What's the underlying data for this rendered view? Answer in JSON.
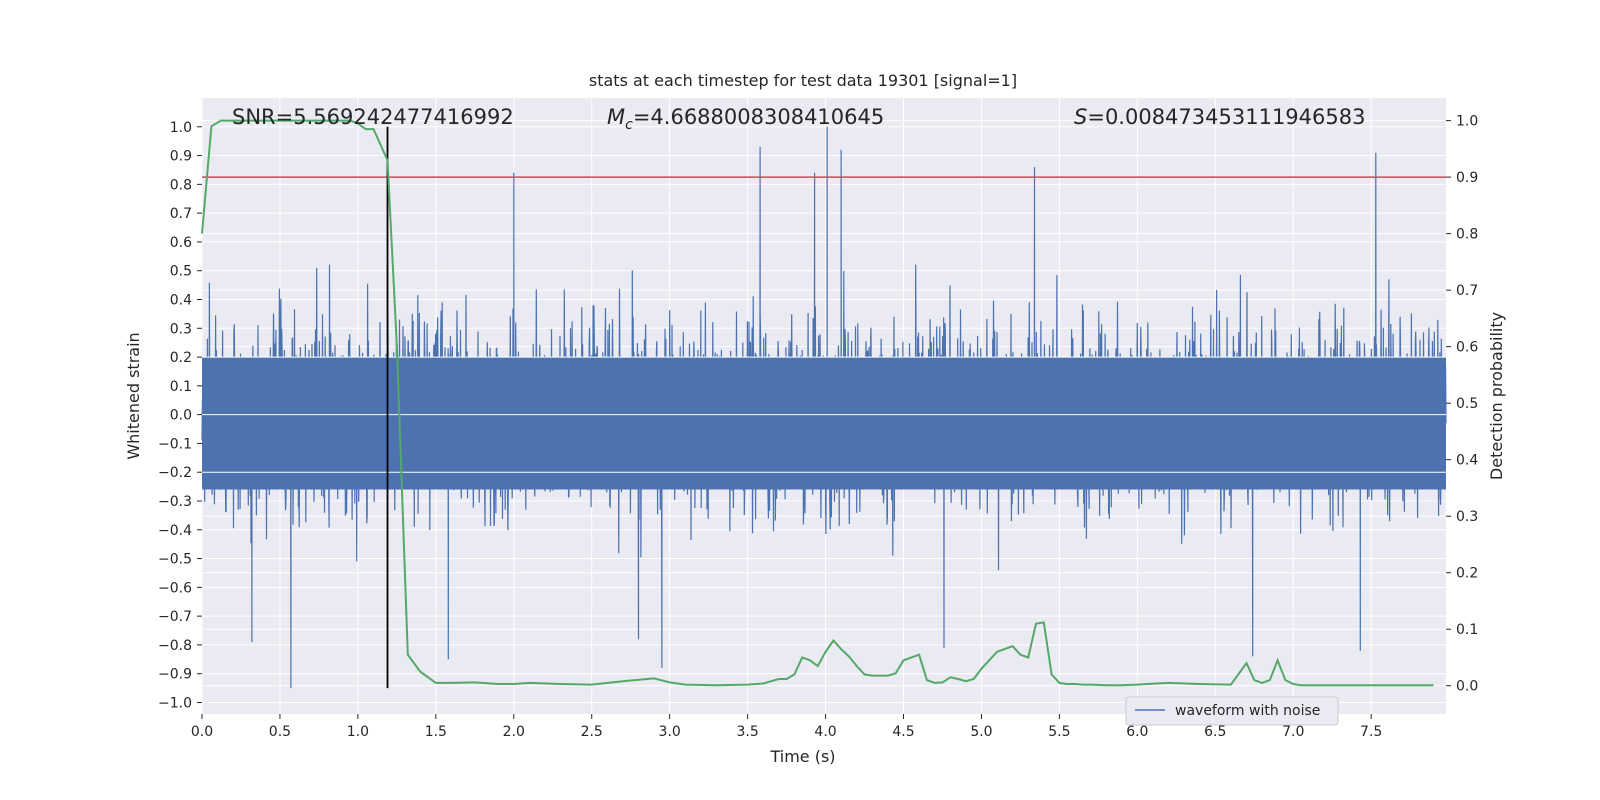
{
  "chart_data": {
    "type": "line",
    "title": "stats at each timestep for test data 19301 [signal=1]",
    "xlabel": "Time (s)",
    "ylabel_left": "Whitened strain",
    "ylabel_right": "Detection probability",
    "xlim": [
      0.0,
      7.98
    ],
    "ylim_left": [
      -1.04,
      1.1
    ],
    "ylim_right": [
      -0.05,
      1.04
    ],
    "x_ticks": [
      0.0,
      0.5,
      1.0,
      1.5,
      2.0,
      2.5,
      3.0,
      3.5,
      4.0,
      4.5,
      5.0,
      5.5,
      6.0,
      6.5,
      7.0,
      7.5
    ],
    "x_tick_labels": [
      "0.0",
      "0.5",
      "1.0",
      "1.5",
      "2.0",
      "2.5",
      "3.0",
      "3.5",
      "4.0",
      "4.5",
      "5.0",
      "5.5",
      "6.0",
      "6.5",
      "7.0",
      "7.5"
    ],
    "y_left_ticks": [
      1.0,
      0.9,
      0.8,
      0.7,
      0.6,
      0.5,
      0.4,
      0.3,
      0.2,
      0.1,
      0.0,
      -0.1,
      -0.2,
      -0.3,
      -0.4,
      -0.5,
      -0.6,
      -0.7,
      -0.8,
      -0.9,
      -1.0
    ],
    "y_left_tick_labels": [
      "1.0",
      "0.9",
      "0.8",
      "0.7",
      "0.6",
      "0.5",
      "0.4",
      "0.3",
      "0.2",
      "0.1",
      "0.0",
      "−0.1",
      "−0.2",
      "−0.3",
      "−0.4",
      "−0.5",
      "−0.6",
      "−0.7",
      "−0.8",
      "−0.9",
      "−1.0"
    ],
    "y_right_ticks": [
      1.0,
      0.9,
      0.8,
      0.7,
      0.6,
      0.5,
      0.4,
      0.3,
      0.2,
      0.1,
      0.0
    ],
    "y_right_tick_labels": [
      "1.0",
      "0.9",
      "0.8",
      "0.7",
      "0.6",
      "0.5",
      "0.4",
      "0.3",
      "0.2",
      "0.1",
      "0.0"
    ],
    "annotations": {
      "snr": "SNR=5.569242477416992",
      "mc_symbol": "M",
      "mc_sub": "c",
      "mc_value": "=4.6688008308410645",
      "s_symbol": "S",
      "s_value": "=0.008473453111946583"
    },
    "threshold_probability": 0.9,
    "event_time": 1.19,
    "event_line_ylim": [
      -0.95,
      1.0
    ],
    "legend": {
      "label": "waveform with noise",
      "placement": "lower-right"
    },
    "grid": true,
    "colors": {
      "strain": "#4c72b0",
      "probability": "#55a868",
      "threshold": "#c44e52",
      "event_line": "#000000",
      "background": "#eaeaf2",
      "grid": "#ffffff"
    },
    "series": [
      {
        "name": "waveform with noise",
        "axis": "left",
        "kind": "dense_noise",
        "sample_rate": 1024,
        "typical_envelope": [
          -0.45,
          0.5
        ],
        "peaks": [
          {
            "x": 0.57,
            "y": -0.95
          },
          {
            "x": 0.32,
            "y": -0.79
          },
          {
            "x": 1.58,
            "y": -0.85
          },
          {
            "x": 2.0,
            "y": 0.84
          },
          {
            "x": 2.95,
            "y": -0.88
          },
          {
            "x": 3.58,
            "y": 0.93
          },
          {
            "x": 4.01,
            "y": 1.0
          },
          {
            "x": 4.1,
            "y": 0.92
          },
          {
            "x": 3.93,
            "y": 0.84
          },
          {
            "x": 4.76,
            "y": -0.81
          },
          {
            "x": 5.34,
            "y": 0.86
          },
          {
            "x": 6.74,
            "y": -0.84
          },
          {
            "x": 7.53,
            "y": 0.91
          },
          {
            "x": 7.43,
            "y": -0.82
          },
          {
            "x": 2.8,
            "y": -0.78
          }
        ]
      },
      {
        "name": "",
        "axis": "right",
        "kind": "line",
        "x": [
          0.0,
          0.06,
          0.12,
          0.2,
          0.3,
          0.45,
          0.6,
          0.8,
          0.95,
          1.0,
          1.05,
          1.1,
          1.19,
          1.25,
          1.32,
          1.4,
          1.5,
          1.6,
          1.75,
          1.9,
          2.0,
          2.1,
          2.3,
          2.5,
          2.7,
          2.9,
          3.0,
          3.1,
          3.3,
          3.5,
          3.6,
          3.7,
          3.75,
          3.8,
          3.85,
          3.9,
          3.95,
          4.0,
          4.05,
          4.1,
          4.15,
          4.2,
          4.25,
          4.3,
          4.4,
          4.45,
          4.5,
          4.6,
          4.65,
          4.7,
          4.75,
          4.8,
          4.85,
          4.9,
          4.95,
          5.0,
          5.1,
          5.2,
          5.25,
          5.3,
          5.35,
          5.4,
          5.45,
          5.5,
          5.55,
          5.6,
          5.65,
          5.7,
          5.8,
          5.9,
          6.0,
          6.2,
          6.4,
          6.6,
          6.7,
          6.75,
          6.8,
          6.85,
          6.9,
          6.95,
          7.0,
          7.05,
          7.1,
          7.3,
          7.5,
          7.7,
          7.9
        ],
        "y": [
          0.8,
          0.99,
          1.0,
          1.0,
          1.0,
          1.0,
          1.0,
          1.0,
          1.0,
          0.995,
          0.985,
          0.985,
          0.93,
          0.6,
          0.055,
          0.025,
          0.005,
          0.005,
          0.006,
          0.003,
          0.003,
          0.005,
          0.003,
          0.002,
          0.008,
          0.013,
          0.006,
          0.002,
          0.001,
          0.002,
          0.004,
          0.012,
          0.012,
          0.02,
          0.05,
          0.045,
          0.035,
          0.06,
          0.08,
          0.065,
          0.052,
          0.035,
          0.02,
          0.018,
          0.018,
          0.022,
          0.045,
          0.055,
          0.01,
          0.005,
          0.006,
          0.015,
          0.012,
          0.008,
          0.012,
          0.03,
          0.06,
          0.07,
          0.055,
          0.05,
          0.11,
          0.112,
          0.02,
          0.005,
          0.003,
          0.003,
          0.002,
          0.002,
          0.001,
          0.001,
          0.002,
          0.005,
          0.003,
          0.002,
          0.04,
          0.01,
          0.005,
          0.01,
          0.045,
          0.01,
          0.003,
          0.001,
          0.001,
          0.001,
          0.001,
          0.001,
          0.001
        ]
      }
    ]
  }
}
